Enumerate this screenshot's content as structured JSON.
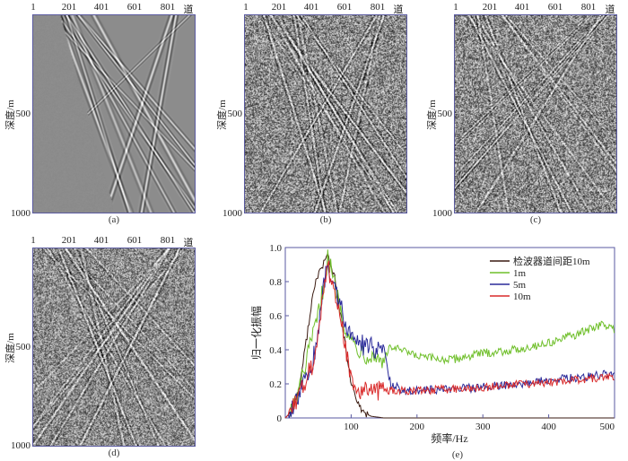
{
  "panels": [
    {
      "caption": "(a)",
      "noise": 0.0,
      "blank_left": true
    },
    {
      "caption": "(b)",
      "noise": 1.0,
      "blank_left": false
    },
    {
      "caption": "(c)",
      "noise": 1.0,
      "blank_left": false
    },
    {
      "caption": "(d)",
      "noise": 0.9,
      "blank_left": false
    }
  ],
  "gather_axes": {
    "trace_ticks": [
      "1",
      "201",
      "401",
      "601",
      "801"
    ],
    "trace_unit": "道",
    "depth_ticks": [
      "500",
      "1000"
    ],
    "depth_label": "深度/m"
  },
  "chart_data": {
    "type": "line",
    "caption": "(e)",
    "xlabel": "频率/Hz",
    "ylabel": "归一化振幅",
    "xlim": [
      0,
      500
    ],
    "ylim": [
      0,
      1.0
    ],
    "xticks": [
      "100",
      "200",
      "300",
      "400",
      "500"
    ],
    "yticks": [
      "0.2",
      "0.4",
      "0.6",
      "0.8",
      "1.0"
    ],
    "legend_position": "top-right",
    "series": [
      {
        "name": "检波器道间距10m",
        "color": "#3a1a10",
        "x": [
          0,
          10,
          20,
          30,
          40,
          50,
          55,
          60,
          65,
          70,
          75,
          80,
          90,
          100,
          110,
          120,
          130,
          150,
          200,
          300,
          400,
          500
        ],
        "y": [
          0,
          0.04,
          0.15,
          0.4,
          0.68,
          0.85,
          0.88,
          0.92,
          0.96,
          0.88,
          0.82,
          0.7,
          0.45,
          0.2,
          0.08,
          0.03,
          0.01,
          0,
          0,
          0,
          0,
          0
        ]
      },
      {
        "name": "1m",
        "color": "#6fbf2a",
        "x": [
          0,
          10,
          20,
          30,
          40,
          50,
          60,
          65,
          70,
          80,
          90,
          100,
          120,
          150,
          160,
          200,
          250,
          300,
          350,
          400,
          450,
          480,
          500
        ],
        "y": [
          0,
          0.04,
          0.15,
          0.3,
          0.45,
          0.6,
          0.82,
          0.95,
          0.86,
          0.7,
          0.55,
          0.45,
          0.38,
          0.34,
          0.42,
          0.36,
          0.34,
          0.38,
          0.4,
          0.44,
          0.5,
          0.55,
          0.52
        ]
      },
      {
        "name": "5m",
        "color": "#2a2a9a",
        "x": [
          0,
          10,
          20,
          30,
          40,
          50,
          60,
          65,
          70,
          80,
          90,
          100,
          120,
          150,
          160,
          180,
          200,
          250,
          300,
          400,
          500
        ],
        "y": [
          0,
          0.04,
          0.12,
          0.22,
          0.3,
          0.5,
          0.82,
          0.95,
          0.8,
          0.7,
          0.58,
          0.48,
          0.42,
          0.4,
          0.2,
          0.16,
          0.16,
          0.17,
          0.18,
          0.22,
          0.26
        ]
      },
      {
        "name": "10m",
        "color": "#d92a2a",
        "x": [
          0,
          10,
          20,
          30,
          40,
          50,
          60,
          65,
          70,
          80,
          90,
          100,
          110,
          120,
          150,
          200,
          250,
          300,
          400,
          500
        ],
        "y": [
          0,
          0.04,
          0.12,
          0.22,
          0.3,
          0.5,
          0.78,
          0.92,
          0.78,
          0.65,
          0.45,
          0.22,
          0.17,
          0.16,
          0.16,
          0.16,
          0.17,
          0.18,
          0.21,
          0.24
        ]
      }
    ]
  }
}
